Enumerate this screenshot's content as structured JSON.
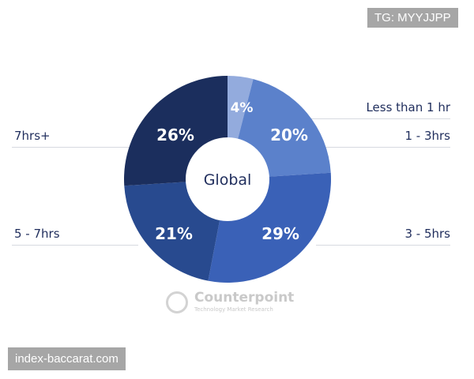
{
  "chart_data": {
    "type": "pie",
    "donut": true,
    "center_label": "Global",
    "categories": [
      "Less than 1 hr",
      "1 - 3hrs",
      "3 - 5hrs",
      "5 - 7hrs",
      "7hrs+"
    ],
    "values": [
      4,
      20,
      29,
      21,
      26
    ],
    "data_labels": [
      "4%",
      "20%",
      "29%",
      "21%",
      "26%"
    ],
    "colors": [
      "#93abdd",
      "#5b81cb",
      "#3a61b7",
      "#284a8f",
      "#1b2e5d"
    ],
    "legend_placement": "sides with leader lines"
  },
  "logo": {
    "name": "Counterpoint",
    "tagline": "Technology Market Research"
  },
  "watermarks": {
    "top_right": "TG: MYYJJPP",
    "bottom_left": "index-baccarat.com"
  }
}
